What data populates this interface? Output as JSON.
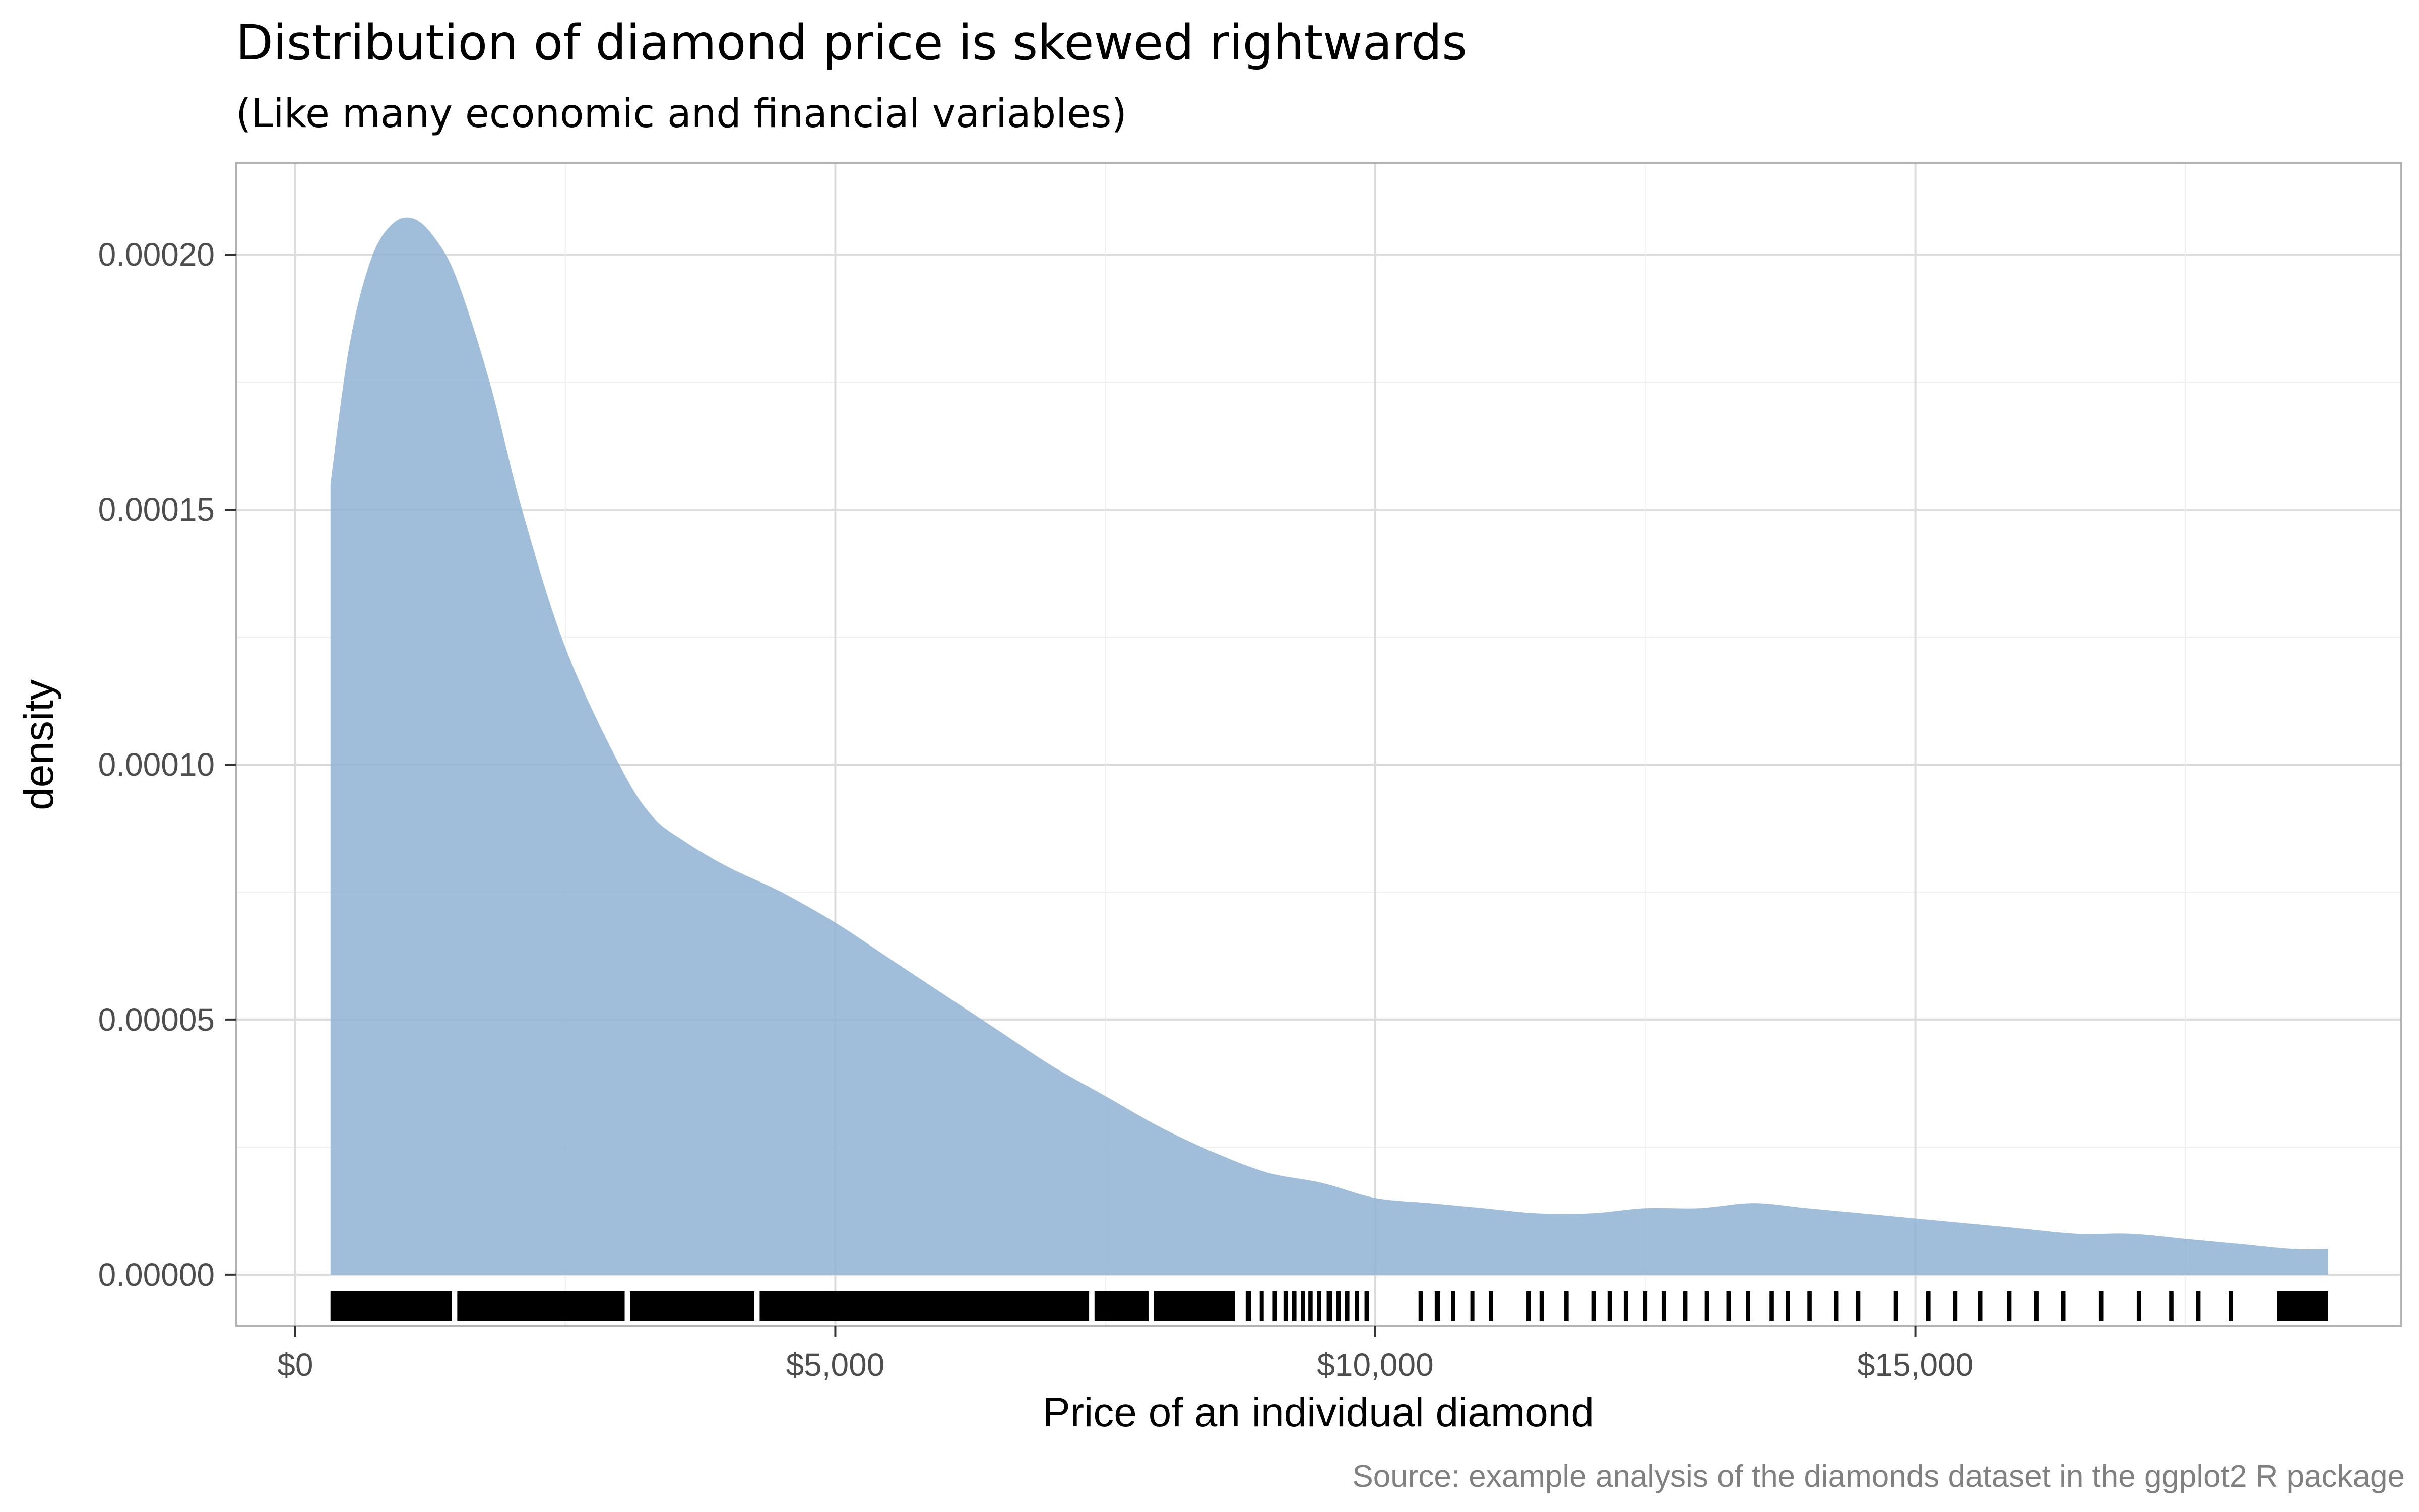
{
  "chart_data": {
    "type": "area",
    "title": "Distribution of diamond price is skewed rightwards",
    "subtitle": "(Like many economic and financial variables)",
    "xlabel": "Price of an individual diamond",
    "ylabel": "density",
    "caption": "Source: example analysis of the diamonds dataset in the ggplot2 R package",
    "xlim": [
      -550,
      19500
    ],
    "ylim": [
      -1e-05,
      0.000218
    ],
    "x_ticks": [
      0,
      5000,
      10000,
      15000
    ],
    "x_tick_labels": [
      "$0",
      "$5,000",
      "$10,000",
      "$15,000"
    ],
    "y_ticks": [
      0,
      5e-05,
      0.0001,
      0.00015,
      0.0002
    ],
    "y_tick_labels": [
      "0.00000",
      "0.00005",
      "0.00010",
      "0.00015",
      "0.00020"
    ],
    "grid": true,
    "fill_color": "#8fb2d3",
    "rug_color": "#000000",
    "density_curve": {
      "x": [
        326,
        500,
        700,
        900,
        1100,
        1300,
        1500,
        1800,
        2100,
        2500,
        3000,
        3300,
        3600,
        4000,
        4500,
        5000,
        5500,
        6000,
        6500,
        7000,
        7500,
        8000,
        8500,
        9000,
        9500,
        10000,
        10500,
        11000,
        11500,
        12000,
        12500,
        13000,
        13500,
        14000,
        14500,
        15000,
        15500,
        16000,
        16500,
        17000,
        17500,
        18000,
        18500,
        18823
      ],
      "y": [
        0.000155,
        0.000182,
        0.000199,
        0.000206,
        0.000207,
        0.000203,
        0.000195,
        0.000175,
        0.00015,
        0.000123,
        0.0001,
        9e-05,
        8.5e-05,
        8e-05,
        7.5e-05,
        6.9e-05,
        6.2e-05,
        5.5e-05,
        4.8e-05,
        4.1e-05,
        3.5e-05,
        2.9e-05,
        2.4e-05,
        2e-05,
        1.8e-05,
        1.5e-05,
        1.4e-05,
        1.3e-05,
        1.2e-05,
        1.2e-05,
        1.3e-05,
        1.3e-05,
        1.4e-05,
        1.3e-05,
        1.2e-05,
        1.1e-05,
        1e-05,
        9e-06,
        8e-06,
        8e-06,
        7e-06,
        6e-06,
        5e-06,
        5e-06
      ]
    },
    "rug_segments": [
      [
        326,
        1450
      ],
      [
        1500,
        3050
      ],
      [
        3100,
        4250
      ],
      [
        4300,
        7350
      ],
      [
        7400,
        7900
      ],
      [
        7950,
        8700
      ],
      [
        8800,
        8850
      ],
      [
        8930,
        8960
      ],
      [
        9050,
        9080
      ],
      [
        9150,
        9190
      ],
      [
        9230,
        9270
      ],
      [
        9310,
        9340
      ],
      [
        9380,
        9420
      ],
      [
        9460,
        9500
      ],
      [
        9550,
        9600
      ],
      [
        9640,
        9680
      ],
      [
        9720,
        9760
      ],
      [
        9810,
        9850
      ],
      [
        9900,
        9940
      ],
      [
        10400,
        10440
      ],
      [
        10550,
        10600
      ],
      [
        10700,
        10740
      ],
      [
        10880,
        10910
      ],
      [
        11050,
        11090
      ],
      [
        11400,
        11440
      ],
      [
        11520,
        11560
      ],
      [
        11750,
        11790
      ],
      [
        12000,
        12040
      ],
      [
        12150,
        12190
      ],
      [
        12300,
        12340
      ],
      [
        12480,
        12520
      ],
      [
        12650,
        12690
      ],
      [
        12850,
        12890
      ],
      [
        13050,
        13090
      ],
      [
        13250,
        13290
      ],
      [
        13430,
        13470
      ],
      [
        13650,
        13690
      ],
      [
        13800,
        13840
      ],
      [
        14000,
        14040
      ],
      [
        14250,
        14290
      ],
      [
        14450,
        14490
      ],
      [
        14800,
        14840
      ],
      [
        15100,
        15140
      ],
      [
        15350,
        15390
      ],
      [
        15580,
        15620
      ],
      [
        15850,
        15890
      ],
      [
        16100,
        16140
      ],
      [
        16350,
        16390
      ],
      [
        16700,
        16740
      ],
      [
        17050,
        17090
      ],
      [
        17350,
        17390
      ],
      [
        17600,
        17640
      ],
      [
        17900,
        17940
      ],
      [
        18350,
        18823
      ]
    ]
  }
}
